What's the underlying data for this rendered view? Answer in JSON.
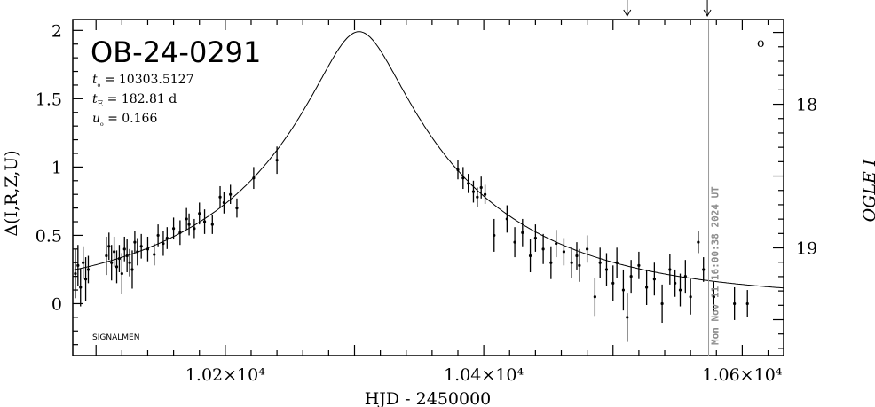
{
  "chart_data": {
    "type": "scatter",
    "title": "OB-24-0291",
    "xlabel": "HJD - 2450000",
    "ylabel": "Δ(I,R,Z,U)",
    "ylabel_right": "OGLE I",
    "xlim": [
      10082,
      10632
    ],
    "ylim": [
      -0.38,
      2.08
    ],
    "ylim_right": [
      19.75,
      17.41
    ],
    "x_ticks": [
      {
        "value": 10200,
        "label": "1.02×10⁴"
      },
      {
        "value": 10400,
        "label": "1.04×10⁴"
      },
      {
        "value": 10600,
        "label": "1.06×10⁴"
      }
    ],
    "y_ticks": [
      {
        "value": 0,
        "label": "0"
      },
      {
        "value": 0.5,
        "label": "0.5"
      },
      {
        "value": 1,
        "label": "1"
      },
      {
        "value": 1.5,
        "label": "1.5"
      },
      {
        "value": 2,
        "label": "2"
      }
    ],
    "y_ticks_right": [
      {
        "value": 18,
        "label": "18"
      },
      {
        "value": 19,
        "label": "19"
      }
    ],
    "parameters": [
      {
        "name": "t₀",
        "value": "= 10303.5127"
      },
      {
        "name": "t_E",
        "value": "= 182.81 d"
      },
      {
        "name": "u₀",
        "value": "= 0.166"
      }
    ],
    "annotation_bottom": "SIGNALMEN",
    "marker_label": "o",
    "date_stamp": "Mon Nov 11 16:00:38 2024 UT",
    "date_stamp_x": 10574,
    "arrows_x": [
      10511,
      10573
    ],
    "model": {
      "t0": 10303.5127,
      "tE": 182.81,
      "u0": 0.166,
      "baseline": 0.03
    },
    "points": [
      {
        "x": 10084,
        "y": 0.22,
        "e": 0.18
      },
      {
        "x": 10086,
        "y": 0.28,
        "e": 0.15
      },
      {
        "x": 10088,
        "y": 0.12,
        "e": 0.14
      },
      {
        "x": 10090,
        "y": 0.3,
        "e": 0.12
      },
      {
        "x": 10092,
        "y": 0.18,
        "e": 0.16
      },
      {
        "x": 10094,
        "y": 0.25,
        "e": 0.1
      },
      {
        "x": 10108,
        "y": 0.35,
        "e": 0.14
      },
      {
        "x": 10110,
        "y": 0.42,
        "e": 0.1
      },
      {
        "x": 10112,
        "y": 0.3,
        "e": 0.13
      },
      {
        "x": 10114,
        "y": 0.38,
        "e": 0.11
      },
      {
        "x": 10116,
        "y": 0.27,
        "e": 0.12
      },
      {
        "x": 10118,
        "y": 0.33,
        "e": 0.1
      },
      {
        "x": 10120,
        "y": 0.22,
        "e": 0.15
      },
      {
        "x": 10122,
        "y": 0.4,
        "e": 0.09
      },
      {
        "x": 10124,
        "y": 0.35,
        "e": 0.12
      },
      {
        "x": 10126,
        "y": 0.3,
        "e": 0.1
      },
      {
        "x": 10128,
        "y": 0.25,
        "e": 0.14
      },
      {
        "x": 10130,
        "y": 0.45,
        "e": 0.08
      },
      {
        "x": 10132,
        "y": 0.38,
        "e": 0.1
      },
      {
        "x": 10135,
        "y": 0.42,
        "e": 0.09
      },
      {
        "x": 10140,
        "y": 0.4,
        "e": 0.09
      },
      {
        "x": 10145,
        "y": 0.36,
        "e": 0.08
      },
      {
        "x": 10148,
        "y": 0.5,
        "e": 0.08
      },
      {
        "x": 10152,
        "y": 0.44,
        "e": 0.09
      },
      {
        "x": 10155,
        "y": 0.48,
        "e": 0.08
      },
      {
        "x": 10160,
        "y": 0.55,
        "e": 0.08
      },
      {
        "x": 10165,
        "y": 0.52,
        "e": 0.09
      },
      {
        "x": 10170,
        "y": 0.62,
        "e": 0.08
      },
      {
        "x": 10172,
        "y": 0.58,
        "e": 0.08
      },
      {
        "x": 10176,
        "y": 0.55,
        "e": 0.07
      },
      {
        "x": 10180,
        "y": 0.66,
        "e": 0.08
      },
      {
        "x": 10184,
        "y": 0.6,
        "e": 0.09
      },
      {
        "x": 10190,
        "y": 0.58,
        "e": 0.07
      },
      {
        "x": 10196,
        "y": 0.78,
        "e": 0.08
      },
      {
        "x": 10199,
        "y": 0.74,
        "e": 0.08
      },
      {
        "x": 10204,
        "y": 0.8,
        "e": 0.07
      },
      {
        "x": 10209,
        "y": 0.7,
        "e": 0.07
      },
      {
        "x": 10222,
        "y": 0.92,
        "e": 0.08
      },
      {
        "x": 10240,
        "y": 1.05,
        "e": 0.1
      },
      {
        "x": 10380,
        "y": 0.98,
        "e": 0.07
      },
      {
        "x": 10384,
        "y": 0.92,
        "e": 0.08
      },
      {
        "x": 10388,
        "y": 0.88,
        "e": 0.07
      },
      {
        "x": 10392,
        "y": 0.82,
        "e": 0.08
      },
      {
        "x": 10395,
        "y": 0.78,
        "e": 0.07
      },
      {
        "x": 10398,
        "y": 0.85,
        "e": 0.08
      },
      {
        "x": 10401,
        "y": 0.8,
        "e": 0.07
      },
      {
        "x": 10408,
        "y": 0.5,
        "e": 0.12
      },
      {
        "x": 10418,
        "y": 0.62,
        "e": 0.1
      },
      {
        "x": 10424,
        "y": 0.45,
        "e": 0.11
      },
      {
        "x": 10430,
        "y": 0.52,
        "e": 0.1
      },
      {
        "x": 10436,
        "y": 0.35,
        "e": 0.12
      },
      {
        "x": 10440,
        "y": 0.48,
        "e": 0.1
      },
      {
        "x": 10446,
        "y": 0.4,
        "e": 0.11
      },
      {
        "x": 10452,
        "y": 0.3,
        "e": 0.12
      },
      {
        "x": 10456,
        "y": 0.44,
        "e": 0.1
      },
      {
        "x": 10462,
        "y": 0.38,
        "e": 0.1
      },
      {
        "x": 10468,
        "y": 0.3,
        "e": 0.11
      },
      {
        "x": 10472,
        "y": 0.35,
        "e": 0.1
      },
      {
        "x": 10474,
        "y": 0.28,
        "e": 0.12
      },
      {
        "x": 10480,
        "y": 0.4,
        "e": 0.1
      },
      {
        "x": 10486,
        "y": 0.05,
        "e": 0.14
      },
      {
        "x": 10490,
        "y": 0.3,
        "e": 0.11
      },
      {
        "x": 10495,
        "y": 0.25,
        "e": 0.12
      },
      {
        "x": 10500,
        "y": 0.15,
        "e": 0.13
      },
      {
        "x": 10503,
        "y": 0.3,
        "e": 0.11
      },
      {
        "x": 10508,
        "y": 0.1,
        "e": 0.15
      },
      {
        "x": 10511,
        "y": -0.1,
        "e": 0.18
      },
      {
        "x": 10514,
        "y": 0.2,
        "e": 0.12
      },
      {
        "x": 10520,
        "y": 0.28,
        "e": 0.1
      },
      {
        "x": 10526,
        "y": 0.12,
        "e": 0.13
      },
      {
        "x": 10532,
        "y": 0.18,
        "e": 0.12
      },
      {
        "x": 10538,
        "y": 0.0,
        "e": 0.14
      },
      {
        "x": 10544,
        "y": 0.25,
        "e": 0.11
      },
      {
        "x": 10548,
        "y": 0.15,
        "e": 0.1
      },
      {
        "x": 10552,
        "y": 0.1,
        "e": 0.12
      },
      {
        "x": 10556,
        "y": 0.2,
        "e": 0.12
      },
      {
        "x": 10560,
        "y": 0.05,
        "e": 0.13
      },
      {
        "x": 10566,
        "y": 0.45,
        "e": 0.08
      },
      {
        "x": 10570,
        "y": 0.25,
        "e": 0.09
      },
      {
        "x": 10578,
        "y": 0.05,
        "e": 0.11
      },
      {
        "x": 10594,
        "y": 0.0,
        "e": 0.12
      },
      {
        "x": 10604,
        "y": 0.0,
        "e": 0.1
      }
    ]
  }
}
